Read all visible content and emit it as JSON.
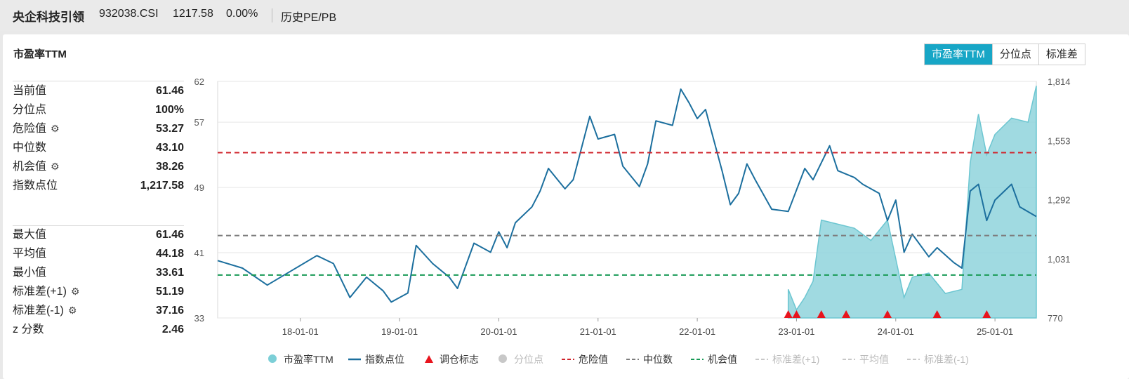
{
  "header": {
    "name": "央企科技引领",
    "code": "932038.CSI",
    "price": "1217.58",
    "change": "0.00%",
    "tab": "历史PE/PB"
  },
  "panel": {
    "title": "市盈率TTM",
    "segments": [
      "市盈率TTM",
      "分位点",
      "标准差"
    ]
  },
  "stats1": [
    {
      "label": "当前值",
      "value": "61.46",
      "gear": false
    },
    {
      "label": "分位点",
      "value": "100%",
      "gear": false
    },
    {
      "label": "危险值",
      "value": "53.27",
      "gear": true
    },
    {
      "label": "中位数",
      "value": "43.10",
      "gear": false
    },
    {
      "label": "机会值",
      "value": "38.26",
      "gear": true
    },
    {
      "label": "指数点位",
      "value": "1,217.58",
      "gear": false
    }
  ],
  "stats2": [
    {
      "label": "最大值",
      "value": "61.46",
      "gear": false
    },
    {
      "label": "平均值",
      "value": "44.18",
      "gear": false
    },
    {
      "label": "最小值",
      "value": "33.61",
      "gear": false
    },
    {
      "label": "标准差(+1)",
      "value": "51.19",
      "gear": true
    },
    {
      "label": "标准差(-1)",
      "value": "37.16",
      "gear": true
    },
    {
      "label": "z 分数",
      "value": "2.46",
      "gear": false
    }
  ],
  "legend": [
    {
      "label": "市盈率TTM",
      "kind": "dot",
      "color": "#7ccfd7",
      "active": true
    },
    {
      "label": "指数点位",
      "kind": "line",
      "color": "#1c6f9e",
      "active": true
    },
    {
      "label": "调仓标志",
      "kind": "triangle",
      "color": "#e8141d",
      "active": true
    },
    {
      "label": "分位点",
      "kind": "dot",
      "color": "#c8c8c8",
      "active": false
    },
    {
      "label": "危险值",
      "kind": "dash",
      "color": "#d0242c",
      "active": true
    },
    {
      "label": "中位数",
      "kind": "dash",
      "color": "#7d7d7d",
      "active": true
    },
    {
      "label": "机会值",
      "kind": "dash",
      "color": "#189a56",
      "active": true
    },
    {
      "label": "标准差(+1)",
      "kind": "dash",
      "color": "#c8c8c8",
      "active": false
    },
    {
      "label": "平均值",
      "kind": "dash",
      "color": "#c8c8c8",
      "active": false
    },
    {
      "label": "标准差(-1)",
      "kind": "dash",
      "color": "#c8c8c8",
      "active": false
    }
  ],
  "chart_data": {
    "type": "line",
    "x_ticks": [
      "18-01-01",
      "19-01-01",
      "20-01-01",
      "21-01-01",
      "22-01-01",
      "23-01-01",
      "24-01-01",
      "25-01-01"
    ],
    "y_left_ticks": [
      "33",
      "41",
      "49",
      "57",
      "62"
    ],
    "y_right_ticks": [
      "770",
      "1,031",
      "1,292",
      "1,553",
      "1,814"
    ],
    "y_left_range": [
      33,
      62
    ],
    "y_right_range": [
      770,
      1814
    ],
    "x_range": [
      "2017-03",
      "2025-06"
    ],
    "reference_lines": {
      "danger": 53.27,
      "median": 43.1,
      "opportunity": 38.26
    },
    "series": [
      {
        "name": "指数点位",
        "axis": "right",
        "points": [
          [
            "2017-03",
            1023
          ],
          [
            "2017-06",
            990
          ],
          [
            "2017-09",
            915
          ],
          [
            "2017-12",
            980
          ],
          [
            "2018-03",
            1045
          ],
          [
            "2018-05",
            1010
          ],
          [
            "2018-07",
            860
          ],
          [
            "2018-09",
            950
          ],
          [
            "2018-11",
            890
          ],
          [
            "2018-12",
            840
          ],
          [
            "2019-02",
            880
          ],
          [
            "2019-03",
            1090
          ],
          [
            "2019-05",
            1010
          ],
          [
            "2019-07",
            950
          ],
          [
            "2019-08",
            900
          ],
          [
            "2019-10",
            1100
          ],
          [
            "2019-12",
            1060
          ],
          [
            "2020-01",
            1150
          ],
          [
            "2020-02",
            1080
          ],
          [
            "2020-03",
            1190
          ],
          [
            "2020-05",
            1260
          ],
          [
            "2020-06",
            1330
          ],
          [
            "2020-07",
            1430
          ],
          [
            "2020-09",
            1340
          ],
          [
            "2020-10",
            1380
          ],
          [
            "2020-12",
            1660
          ],
          [
            "2021-01",
            1560
          ],
          [
            "2021-03",
            1580
          ],
          [
            "2021-04",
            1440
          ],
          [
            "2021-06",
            1350
          ],
          [
            "2021-07",
            1450
          ],
          [
            "2021-08",
            1640
          ],
          [
            "2021-10",
            1620
          ],
          [
            "2021-11",
            1780
          ],
          [
            "2021-12",
            1720
          ],
          [
            "2022-01",
            1650
          ],
          [
            "2022-02",
            1690
          ],
          [
            "2022-04",
            1420
          ],
          [
            "2022-05",
            1270
          ],
          [
            "2022-06",
            1320
          ],
          [
            "2022-07",
            1450
          ],
          [
            "2022-08",
            1380
          ],
          [
            "2022-10",
            1250
          ],
          [
            "2022-12",
            1240
          ],
          [
            "2023-02",
            1430
          ],
          [
            "2023-03",
            1380
          ],
          [
            "2023-05",
            1530
          ],
          [
            "2023-06",
            1420
          ],
          [
            "2023-08",
            1390
          ],
          [
            "2023-09",
            1360
          ],
          [
            "2023-11",
            1320
          ],
          [
            "2023-12",
            1200
          ],
          [
            "2024-01",
            1290
          ],
          [
            "2024-02",
            1060
          ],
          [
            "2024-03",
            1140
          ],
          [
            "2024-05",
            1040
          ],
          [
            "2024-06",
            1080
          ],
          [
            "2024-08",
            1015
          ],
          [
            "2024-09",
            990
          ],
          [
            "2024-10",
            1330
          ],
          [
            "2024-11",
            1360
          ],
          [
            "2024-12",
            1200
          ],
          [
            "2025-01",
            1290
          ],
          [
            "2025-03",
            1360
          ],
          [
            "2025-04",
            1260
          ],
          [
            "2025-06",
            1217.58
          ]
        ]
      },
      {
        "name": "市盈率TTM",
        "axis": "left",
        "points": [
          [
            "2022-12",
            36.5
          ],
          [
            "2023-01",
            34.0
          ],
          [
            "2023-02",
            35.5
          ],
          [
            "2023-03",
            37.5
          ],
          [
            "2023-04",
            45.0
          ],
          [
            "2023-06",
            44.5
          ],
          [
            "2023-08",
            44.0
          ],
          [
            "2023-10",
            42.5
          ],
          [
            "2023-12",
            45.0
          ],
          [
            "2024-02",
            35.5
          ],
          [
            "2024-03",
            38.0
          ],
          [
            "2024-05",
            38.5
          ],
          [
            "2024-07",
            36.0
          ],
          [
            "2024-09",
            36.5
          ],
          [
            "2024-10",
            52.0
          ],
          [
            "2024-11",
            58.0
          ],
          [
            "2024-12",
            53.0
          ],
          [
            "2025-01",
            55.5
          ],
          [
            "2025-03",
            57.5
          ],
          [
            "2025-05",
            57.0
          ],
          [
            "2025-06",
            61.46
          ]
        ]
      }
    ],
    "rebalance_markers": [
      "2022-12",
      "2023-01",
      "2023-04",
      "2023-07",
      "2023-12",
      "2024-06",
      "2024-12"
    ]
  }
}
